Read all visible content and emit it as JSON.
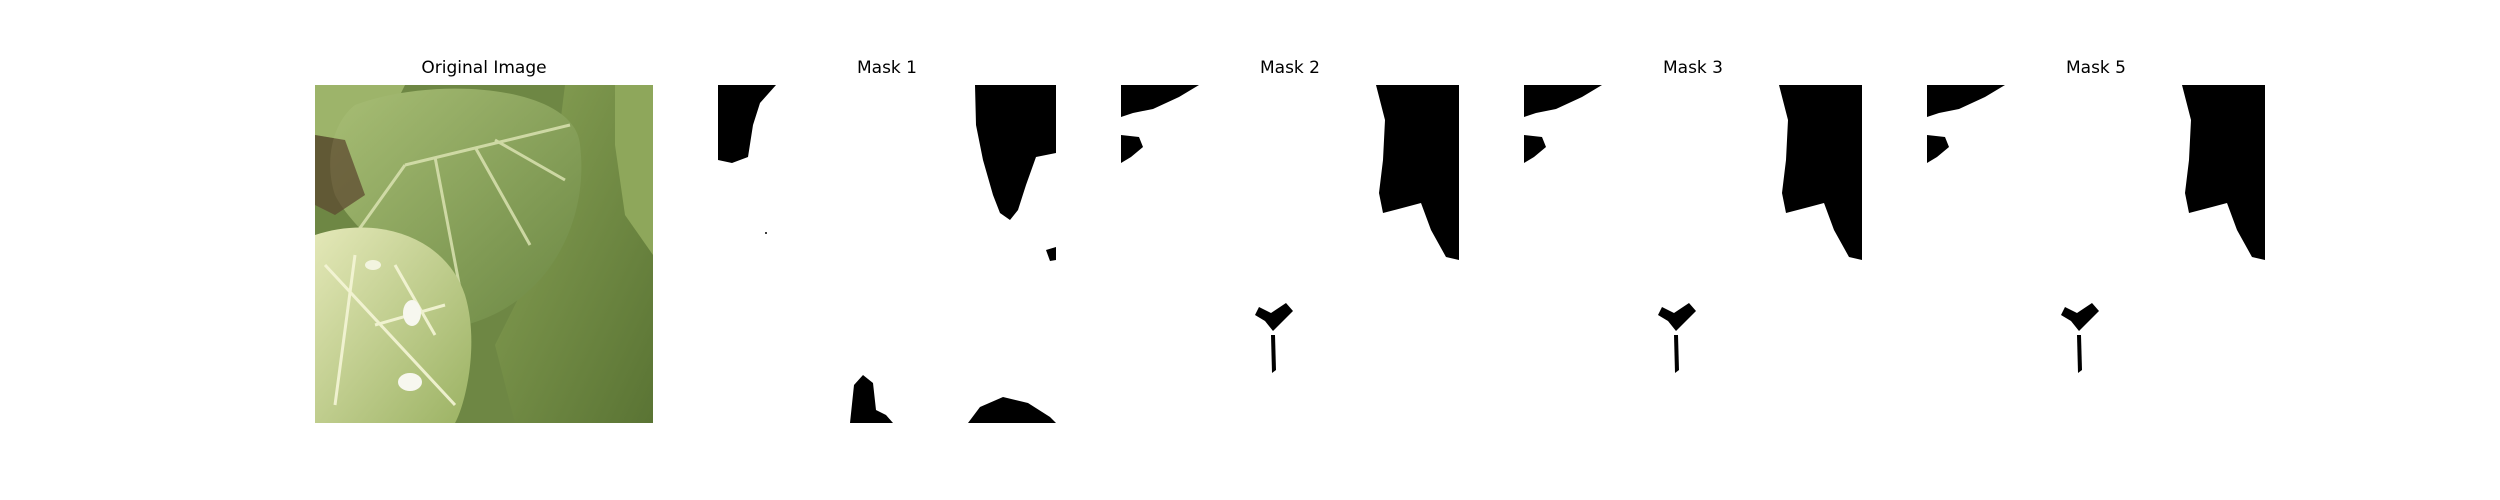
{
  "figure": {
    "panels": [
      {
        "title": "Original Image"
      },
      {
        "title": "Mask 1"
      },
      {
        "title": "Mask 2"
      },
      {
        "title": "Mask 3"
      },
      {
        "title": "Mask 5"
      }
    ]
  },
  "colors": {
    "mask_foreground": "#000000",
    "mask_background": "#ffffff",
    "leaf_light": "#c9d58e",
    "leaf_mid": "#9fb46a",
    "leaf_dark": "#6f8a45"
  }
}
